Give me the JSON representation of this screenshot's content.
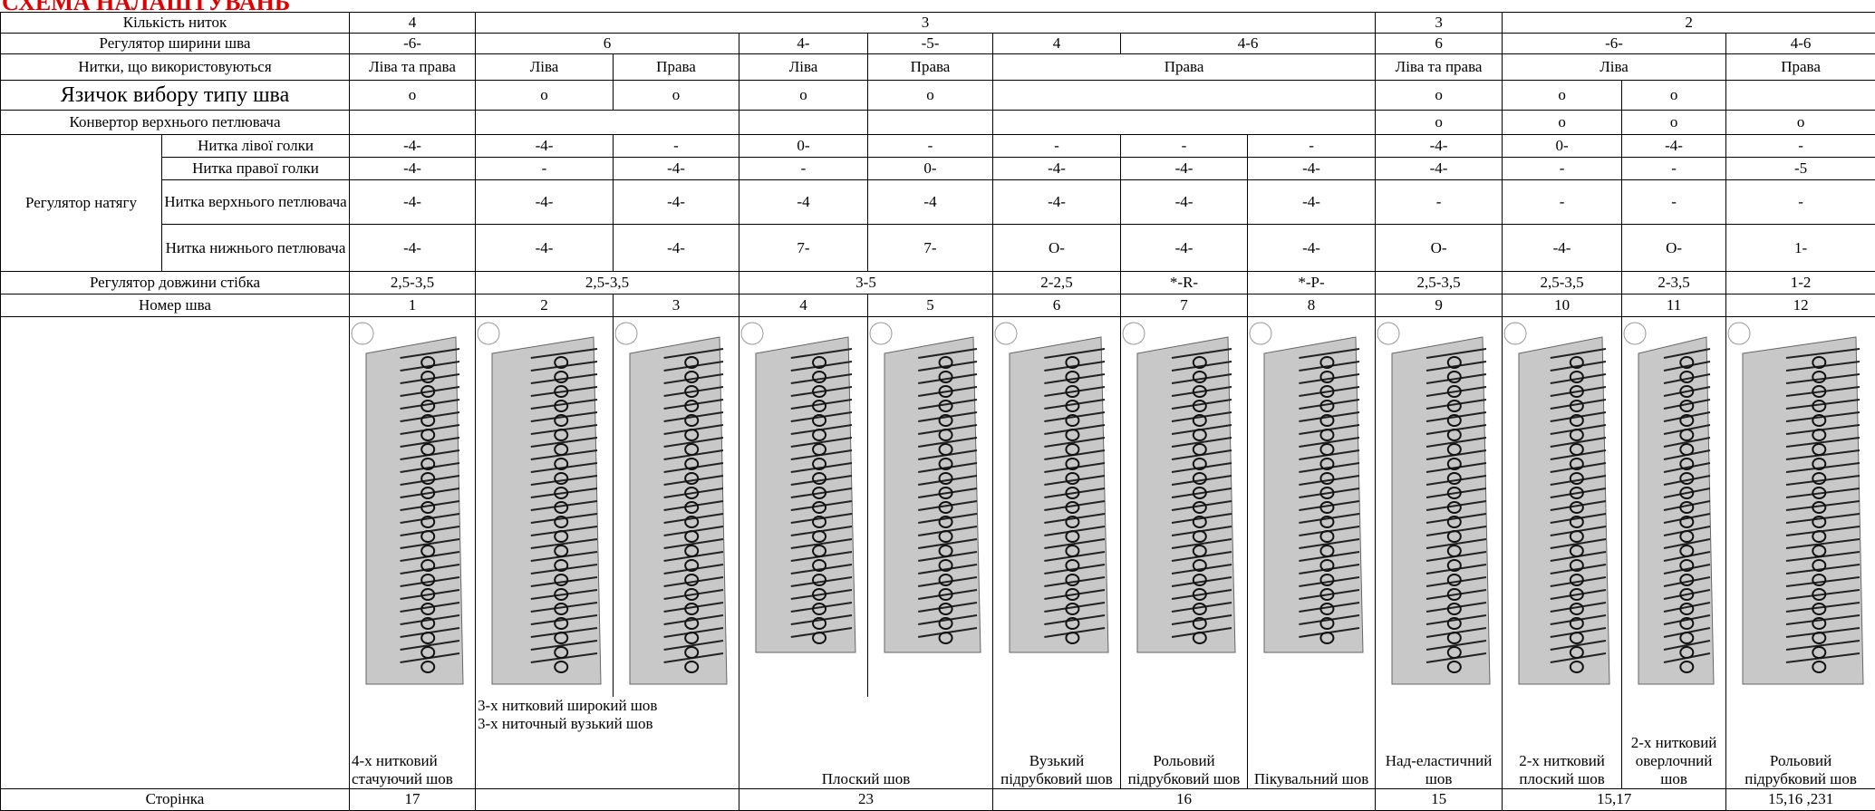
{
  "header": {
    "title": "СХЕМА НАЛАШТУВАНЬ"
  },
  "table": {
    "rows": [
      [
        "Кількість ниток",
        "4",
        "3",
        "3",
        "2"
      ],
      [
        "Регулятор ширини шва",
        "-6-",
        "6",
        "4-",
        "-5-",
        "4",
        "4-6",
        "6",
        "-6-",
        "4-6"
      ],
      [
        "Нитки, що використовуються",
        "Ліва та права",
        "Ліва",
        "Права",
        "Ліва",
        "Права",
        "Права",
        "Ліва та права",
        "Ліва",
        "Права"
      ],
      [
        "Язичок вибору типу шва",
        "o",
        "o",
        "o",
        "o",
        "o",
        "o",
        "o",
        "o"
      ],
      [
        "Конвертор верхнього петлювача",
        "o",
        "o",
        "o",
        "o"
      ],
      [
        "Регулятор натягу",
        "Нитка лівої голки",
        "-4-",
        "-4-",
        "-",
        "0-",
        "-",
        "-",
        "-",
        "-",
        "-4-",
        "0-",
        "-4-",
        "-"
      ],
      [
        "Нитка правої голки",
        "-4-",
        "-",
        "-4-",
        "-",
        "0-",
        "-4-",
        "-4-",
        "-4-",
        "-4-",
        "-",
        "-",
        "-5"
      ],
      [
        "Нитка верхнього петлювача",
        "-4-",
        "-4-",
        "-4-",
        "-4",
        "-4",
        "-4-",
        "-4-",
        "-4-",
        "-",
        "-",
        "-",
        "-"
      ],
      [
        "Нитка нижнього петлювача",
        "-4-",
        "-4-",
        "-4-",
        "7-",
        "7-",
        "O-",
        "-4-",
        "-4-",
        "O-",
        "-4-",
        "O-",
        "1-"
      ],
      [
        "Регулятор довжини стібка",
        "2,5-3,5",
        "2,5-3,5",
        "3-5",
        "2-2,5",
        "*-R-",
        "*-P-",
        "2,5-3,5",
        "2,5-3,5",
        "2-3,5",
        "1-2"
      ],
      [
        "Номер шва",
        "1",
        "2",
        "3",
        "4",
        "5",
        "6",
        "7",
        "8",
        "9",
        "10",
        "11",
        "12"
      ],
      [
        "4-х нитковий стачуючий шов",
        "3-х нитковий широкий шов\n3-х ниточный вузький шов",
        "Плоский шов",
        "Вузький підрубковий шов",
        "Рольовий підрубковий шов",
        "Пікувальний шов",
        "Над-еластичний шов",
        "2-х нитковий плоский шов",
        "2-х нитковий оверлочний шов",
        "Рольовий підрубковий шов"
      ],
      [
        "Сторінка",
        "17",
        "23",
        "16",
        "15",
        "15,17",
        "15,16 ,231"
      ]
    ]
  }
}
